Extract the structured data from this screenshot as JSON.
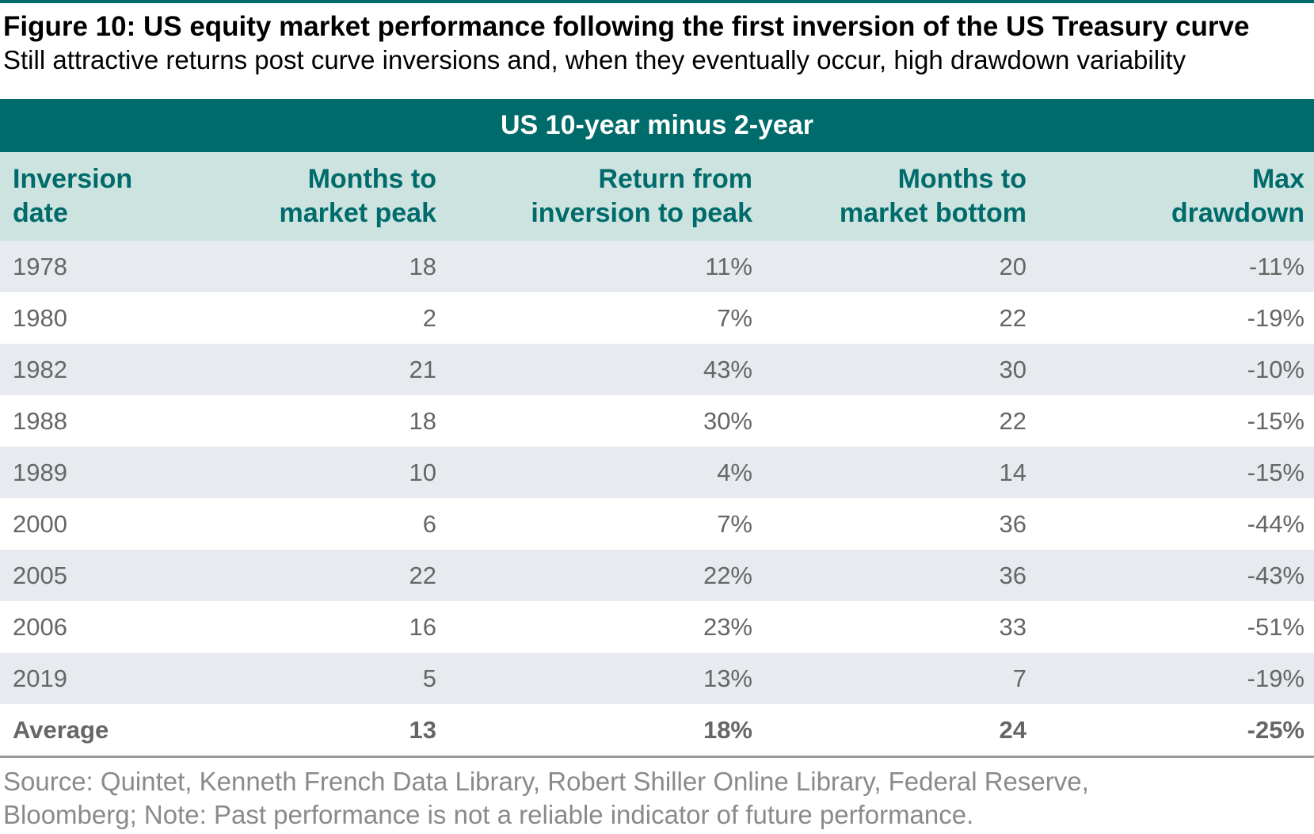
{
  "header": {
    "title": "Figure 10: US equity market performance following the first inversion of the US Treasury curve",
    "subtitle": "Still attractive returns post curve inversions and, when they eventually occur, high drawdown variability"
  },
  "table": {
    "group_header": "US 10-year minus 2-year",
    "columns": [
      [
        "Inversion",
        "date"
      ],
      [
        "Months to",
        "market peak"
      ],
      [
        "Return from",
        "inversion to peak"
      ],
      [
        "Months to",
        "market bottom"
      ],
      [
        "Max",
        "drawdown"
      ]
    ],
    "rows": [
      [
        "1978",
        "18",
        "11%",
        "20",
        "-11%"
      ],
      [
        "1980",
        "2",
        "7%",
        "22",
        "-19%"
      ],
      [
        "1982",
        "21",
        "43%",
        "30",
        "-10%"
      ],
      [
        "1988",
        "18",
        "30%",
        "22",
        "-15%"
      ],
      [
        "1989",
        "10",
        "4%",
        "14",
        "-15%"
      ],
      [
        "2000",
        "6",
        "7%",
        "36",
        "-44%"
      ],
      [
        "2005",
        "22",
        "22%",
        "36",
        "-43%"
      ],
      [
        "2006",
        "16",
        "23%",
        "33",
        "-51%"
      ],
      [
        "2019",
        "5",
        "13%",
        "7",
        "-19%"
      ]
    ],
    "average": [
      "Average",
      "13",
      "18%",
      "24",
      "-25%"
    ]
  },
  "footer": {
    "source": [
      "Source: Quintet, Kenneth French Data Library, Robert Shiller Online Library, Federal Reserve,",
      "Bloomberg; Note: Past performance is not a reliable indicator of future performance."
    ]
  }
}
